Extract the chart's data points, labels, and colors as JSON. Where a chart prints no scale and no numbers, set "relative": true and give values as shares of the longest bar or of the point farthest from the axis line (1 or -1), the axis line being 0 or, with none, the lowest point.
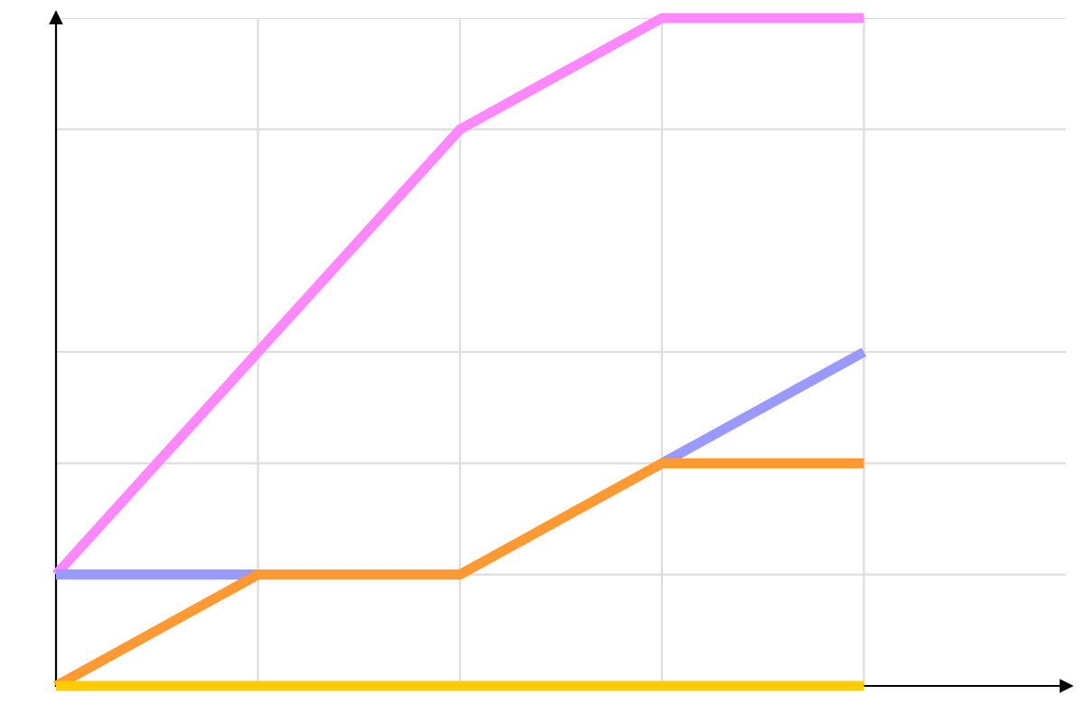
{
  "chart_data": {
    "type": "line",
    "relative": true,
    "categories": [
      null,
      null,
      null,
      null,
      null
    ],
    "grid": true,
    "legend": false,
    "series": [
      {
        "color": "#ff88ff",
        "values": [
          0.1667,
          0.5,
          0.8333,
          1,
          1
        ]
      },
      {
        "color": "#9999ff",
        "values": [
          0.1667,
          0.1667,
          null,
          0.3333,
          0.5
        ]
      },
      {
        "color": "#ff9933",
        "values": [
          0,
          0.1667,
          0.1667,
          0.3333,
          0.3333
        ]
      },
      {
        "color": "#ffcc00",
        "values": [
          0,
          0,
          0,
          0,
          0
        ]
      }
    ]
  }
}
